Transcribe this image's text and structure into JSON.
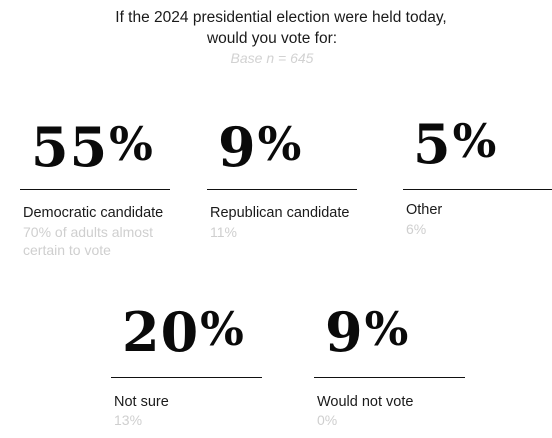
{
  "title_line1": "If the 2024 presidential election were held today,",
  "title_line2": "would you vote for:",
  "base": "Base n = 645",
  "chart_data": {
    "type": "table",
    "categories": [
      "Democratic candidate",
      "Republican candidate",
      "Other",
      "Not sure",
      "Would not vote"
    ],
    "values": [
      55,
      9,
      5,
      20,
      9
    ],
    "comparison_values": [
      70,
      11,
      6,
      13,
      0
    ],
    "comparison_note_lines": [
      "70% of adults almost",
      "certain to vote"
    ],
    "items": [
      {
        "value": "55",
        "sign": "%",
        "label": "Democratic candidate",
        "sub_lines": [
          "70% of adults almost",
          "certain to vote"
        ]
      },
      {
        "value": "9",
        "sign": "%",
        "label": "Republican candidate",
        "sub_lines": [
          "11%"
        ]
      },
      {
        "value": "5",
        "sign": "%",
        "label": "Other",
        "sub_lines": [
          "6%"
        ]
      },
      {
        "value": "20",
        "sign": "%",
        "label": "Not sure",
        "sub_lines": [
          "13%"
        ]
      },
      {
        "value": "9",
        "sign": "%",
        "label": "Would not vote",
        "sub_lines": [
          "0%"
        ]
      }
    ],
    "colors": {
      "value": "#0a0a0a",
      "label": "#1a1a1a",
      "comparison": "#cfcfcf",
      "rule": "#111111"
    }
  }
}
